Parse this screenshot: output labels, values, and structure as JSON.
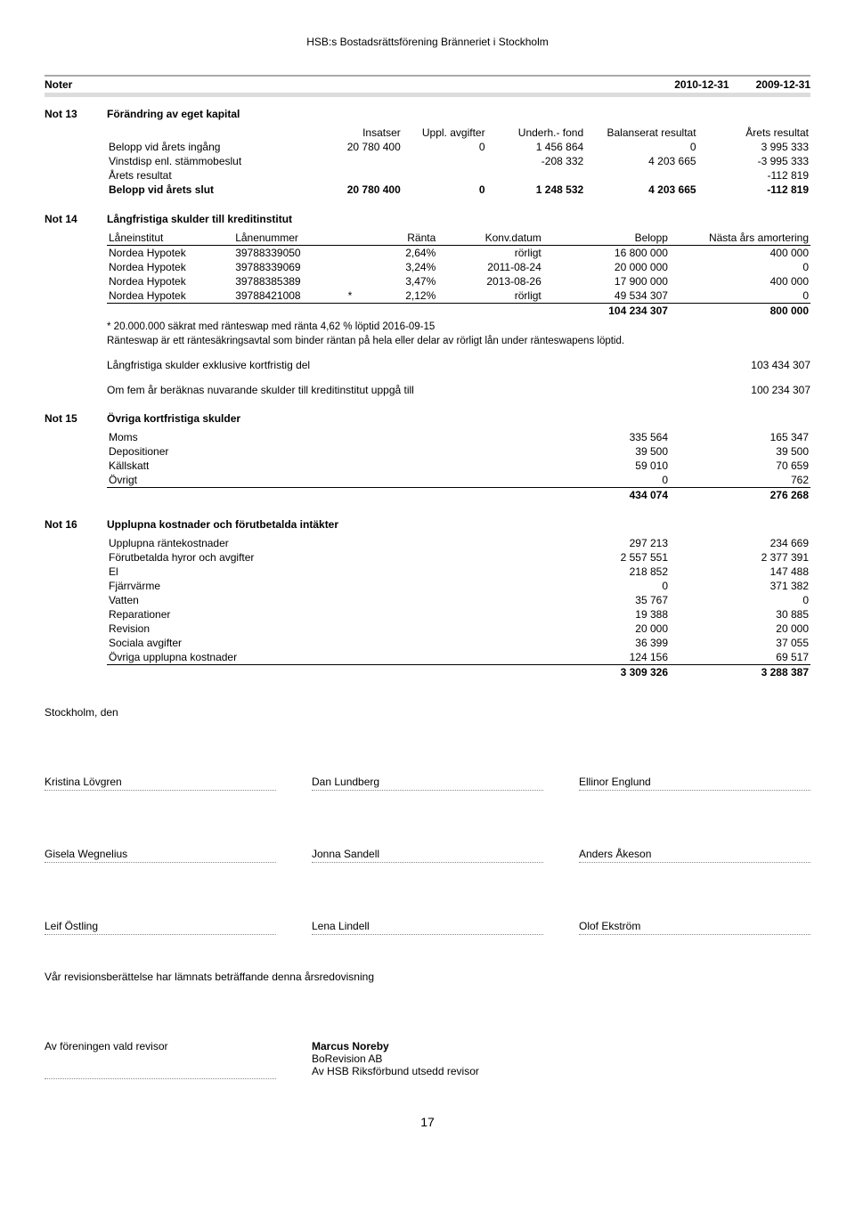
{
  "header": {
    "org": "HSB:s Bostadsrättsförening Bränneriet i Stockholm"
  },
  "noter": {
    "label": "Noter",
    "date1": "2010-12-31",
    "date2": "2009-12-31"
  },
  "note13": {
    "num": "Not 13",
    "title": "Förändring av eget kapital",
    "cols": [
      "",
      "Insatser",
      "Uppl. avgifter",
      "Underh.- fond",
      "Balanserat resultat",
      "Årets resultat"
    ],
    "rows": [
      {
        "label": "Belopp vid årets ingång",
        "c": [
          "20 780 400",
          "0",
          "1 456 864",
          "0",
          "3 995 333"
        ]
      },
      {
        "label": "Vinstdisp enl. stämmobeslut",
        "c": [
          "",
          "",
          "-208 332",
          "4 203 665",
          "-3 995 333"
        ]
      },
      {
        "label": "Årets resultat",
        "c": [
          "",
          "",
          "",
          "",
          "-112 819"
        ]
      },
      {
        "label": "Belopp vid årets slut",
        "c": [
          "20 780 400",
          "0",
          "1 248 532",
          "4 203 665",
          "-112 819"
        ],
        "bold": true
      }
    ]
  },
  "note14": {
    "num": "Not 14",
    "title": "Långfristiga skulder till kreditinstitut",
    "cols": [
      "Låneinstitut",
      "Lånenummer",
      "",
      "Ränta",
      "Konv.datum",
      "Belopp",
      "Nästa års amortering"
    ],
    "rows": [
      {
        "c": [
          "Nordea Hypotek",
          "39788339050",
          "",
          "2,64%",
          "rörligt",
          "16 800 000",
          "400 000"
        ]
      },
      {
        "c": [
          "Nordea Hypotek",
          "39788339069",
          "",
          "3,24%",
          "2011-08-24",
          "20 000 000",
          "0"
        ]
      },
      {
        "c": [
          "Nordea Hypotek",
          "39788385389",
          "",
          "3,47%",
          "2013-08-26",
          "17 900 000",
          "400 000"
        ]
      },
      {
        "c": [
          "Nordea Hypotek",
          "39788421008",
          "*",
          "2,12%",
          "rörligt",
          "49 534 307",
          "0"
        ]
      }
    ],
    "total": [
      "",
      "",
      "",
      "",
      "",
      "104 234 307",
      "800 000"
    ],
    "foot1": "* 20.000.000 säkrat med ränteswap med ränta 4,62 % löptid 2016-09-15",
    "foot2": "Ränteswap är ett räntesäkringsavtal som binder räntan på hela eller delar av rörligt lån under ränteswapens löptid.",
    "line1": {
      "label": "Långfristiga skulder exklusive kortfristig del",
      "val": "103 434 307"
    },
    "line2": {
      "label": "Om fem år beräknas nuvarande skulder till kreditinstitut uppgå till",
      "val": "100 234 307"
    }
  },
  "note15": {
    "num": "Not 15",
    "title": "Övriga kortfristiga skulder",
    "rows": [
      {
        "label": "Moms",
        "a": "335 564",
        "b": "165 347"
      },
      {
        "label": "Depositioner",
        "a": "39 500",
        "b": "39 500"
      },
      {
        "label": "Källskatt",
        "a": "59 010",
        "b": "70 659"
      },
      {
        "label": "Övrigt",
        "a": "0",
        "b": "762"
      }
    ],
    "total": {
      "a": "434 074",
      "b": "276 268"
    }
  },
  "note16": {
    "num": "Not 16",
    "title": "Upplupna kostnader och förutbetalda intäkter",
    "rows": [
      {
        "label": "Upplupna räntekostnader",
        "a": "297 213",
        "b": "234 669"
      },
      {
        "label": "Förutbetalda hyror och avgifter",
        "a": "2 557 551",
        "b": "2 377 391"
      },
      {
        "label": "El",
        "a": "218 852",
        "b": "147 488"
      },
      {
        "label": "Fjärrvärme",
        "a": "0",
        "b": "371 382"
      },
      {
        "label": "Vatten",
        "a": "35 767",
        "b": "0"
      },
      {
        "label": "Reparationer",
        "a": "19 388",
        "b": "30 885"
      },
      {
        "label": "Revision",
        "a": "20 000",
        "b": "20 000"
      },
      {
        "label": "Sociala avgifter",
        "a": "36 399",
        "b": "37 055"
      },
      {
        "label": "Övriga upplupna kostnader",
        "a": "124 156",
        "b": "69 517"
      }
    ],
    "total": {
      "a": "3 309 326",
      "b": "3 288 387"
    }
  },
  "signatures": {
    "place": "Stockholm, den",
    "row1": [
      "Kristina Lövgren",
      "Dan Lundberg",
      "Ellinor Englund"
    ],
    "row2": [
      "Gisela Wegnelius",
      "Jonna Sandell",
      "Anders Åkeson"
    ],
    "row3": [
      "Leif Östling",
      "Lena Lindell",
      "Olof Ekström"
    ],
    "audit_line": "Vår revisionsberättelse har                          lämnats beträffande denna årsredovisning",
    "auditor_name": "Marcus Noreby",
    "auditor_org": "BoRevision AB",
    "auditor_sub": "Av HSB Riksförbund utsedd revisor",
    "left_auditor": "Av föreningen vald revisor"
  },
  "page_number": "17"
}
